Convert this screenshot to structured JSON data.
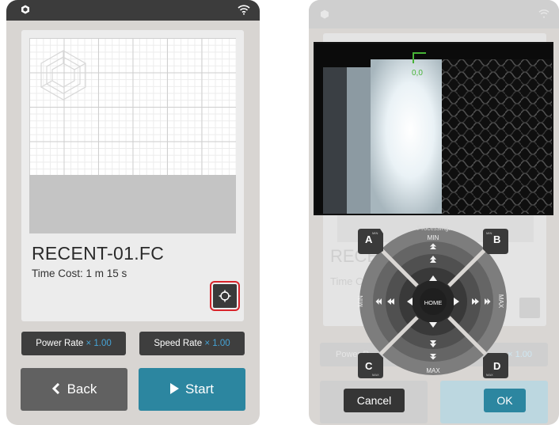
{
  "left_screen": {
    "file_name": "RECENT-01.FC",
    "time_cost": "Time Cost: 1 m 15 s",
    "power_rate": {
      "label": "Power Rate",
      "multiplier": "× 1.00"
    },
    "speed_rate": {
      "label": "Speed Rate",
      "multiplier": "× 1.00"
    },
    "back_label": "Back",
    "start_label": "Start",
    "back_icon": "chevron-left-icon",
    "start_icon": "play-icon",
    "target_icon": "crosshair-icon",
    "highlight_color": "#d9242b"
  },
  "right_screen": {
    "camera_coord": "0,0",
    "processing_text": "Processing...",
    "corners": {
      "a": "A",
      "b": "B",
      "c": "C",
      "d": "D"
    },
    "corner_min": "MIN",
    "corner_max": "MAX",
    "jog": {
      "top_label": "MIN",
      "bottom_label": "MAX",
      "left_label": "MIN",
      "right_label": "MAX",
      "center_label": "HOME"
    },
    "cancel_label": "Cancel",
    "ok_label": "OK",
    "bg_file_name": "RECE",
    "bg_time_cost": "Time C",
    "bg_power_label": "Power R",
    "bg_speed_suffix": "× 1.00"
  },
  "colors": {
    "accent_teal": "#2c86a0",
    "rate_multiplier": "#45a3d6",
    "dark_button": "#3e3e3e"
  }
}
